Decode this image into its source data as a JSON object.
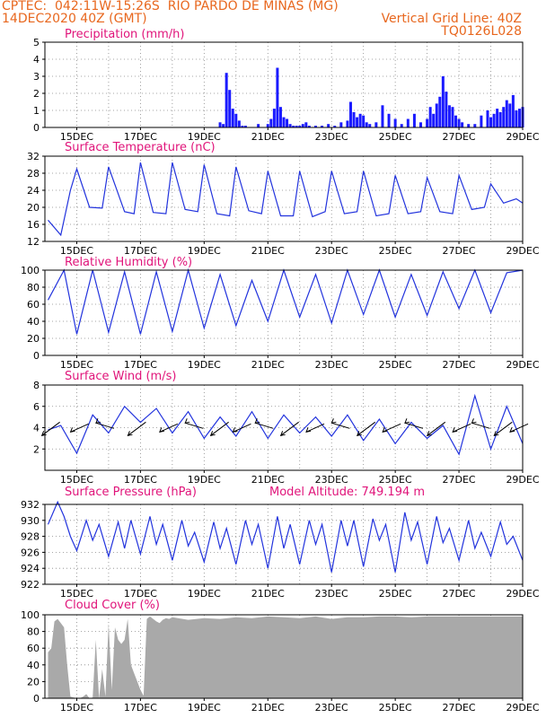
{
  "header": {
    "left_line1": "CPTEC:  042:11W-15:26S  RIO PARDO DE MINAS (MG)",
    "left_line2": "14DEC2020 40Z (GMT)",
    "right_line1": "Vertical Grid Line: 40Z",
    "right_line2": "TQ0126L028"
  },
  "x_ticks": [
    "15DEC",
    "17DEC",
    "19DEC",
    "21DEC",
    "23DEC",
    "25DEC",
    "27DEC",
    "29DEC"
  ],
  "colors": {
    "line": "#2233dd",
    "bar": "#1a1aff",
    "cloud": "#a9a9a9",
    "title": "#e0147a",
    "header": "#e8671e"
  },
  "chart_data": [
    {
      "type": "bar",
      "title": "Precipitation (mm/h)",
      "ylim": [
        0,
        5
      ],
      "yticks": [
        "0",
        "1",
        "2",
        "3",
        "4",
        "5"
      ],
      "x": [
        19.5,
        19.6,
        19.7,
        19.8,
        19.9,
        20.0,
        20.1,
        20.2,
        20.3,
        20.7,
        21.0,
        21.1,
        21.2,
        21.3,
        21.4,
        21.5,
        21.6,
        21.7,
        21.8,
        21.9,
        22.0,
        22.1,
        22.2,
        22.3,
        22.5,
        22.7,
        22.9,
        23.1,
        23.3,
        23.5,
        23.6,
        23.7,
        23.8,
        23.9,
        24.0,
        24.1,
        24.2,
        24.4,
        24.6,
        24.8,
        25.0,
        25.2,
        25.4,
        25.6,
        25.8,
        26.0,
        26.1,
        26.2,
        26.3,
        26.4,
        26.5,
        26.6,
        26.7,
        26.8,
        26.9,
        27.0,
        27.1,
        27.3,
        27.5,
        27.7,
        27.9,
        28.0,
        28.1,
        28.2,
        28.3,
        28.4,
        28.5,
        28.6,
        28.7,
        28.8,
        28.9,
        29.0
      ],
      "values": [
        0.3,
        0.2,
        3.2,
        2.2,
        1.1,
        0.8,
        0.4,
        0.1,
        0.1,
        0.2,
        0.2,
        0.5,
        1.1,
        3.5,
        1.2,
        0.6,
        0.5,
        0.2,
        0.1,
        0.1,
        0.1,
        0.2,
        0.3,
        0.1,
        0.1,
        0.1,
        0.2,
        0.1,
        0.3,
        0.4,
        1.5,
        0.9,
        0.6,
        0.8,
        0.7,
        0.3,
        0.2,
        0.3,
        1.3,
        0.8,
        0.5,
        0.2,
        0.5,
        0.8,
        0.3,
        0.5,
        1.2,
        0.8,
        1.4,
        1.8,
        3.0,
        2.1,
        1.3,
        1.2,
        0.7,
        0.5,
        0.3,
        0.2,
        0.2,
        0.7,
        1.0,
        0.6,
        0.8,
        1.1,
        0.9,
        1.2,
        1.6,
        1.4,
        1.9,
        1.0,
        1.1,
        1.2
      ]
    },
    {
      "type": "line",
      "title": "Surface Temperature (nC)",
      "ylim": [
        12,
        32
      ],
      "yticks": [
        "12",
        "16",
        "20",
        "24",
        "28",
        "32"
      ],
      "x": [
        14.1,
        14.5,
        14.8,
        15.0,
        15.4,
        15.8,
        16.0,
        16.5,
        16.8,
        17.0,
        17.4,
        17.8,
        18.0,
        18.4,
        18.8,
        19.0,
        19.4,
        19.8,
        20.0,
        20.4,
        20.8,
        21.0,
        21.4,
        21.8,
        22.0,
        22.4,
        22.8,
        23.0,
        23.4,
        23.8,
        24.0,
        24.4,
        24.8,
        25.0,
        25.4,
        25.8,
        26.0,
        26.4,
        26.8,
        27.0,
        27.4,
        27.8,
        28.0,
        28.4,
        28.8,
        29.0
      ],
      "values": [
        17.0,
        13.5,
        24.0,
        29.0,
        20.0,
        19.8,
        29.5,
        19.0,
        18.5,
        30.5,
        18.8,
        18.5,
        30.5,
        19.5,
        19.0,
        30.0,
        18.5,
        18.0,
        29.5,
        19.2,
        18.5,
        28.5,
        18.0,
        18.0,
        28.5,
        17.8,
        19.0,
        28.5,
        18.5,
        19.0,
        28.5,
        18.0,
        18.5,
        27.5,
        18.5,
        19.0,
        27.0,
        19.0,
        18.5,
        27.5,
        19.5,
        20.0,
        25.5,
        21.0,
        22.0,
        21.0
      ]
    },
    {
      "type": "line",
      "title": "Relative Humidity (%)",
      "ylim": [
        0,
        100
      ],
      "yticks": [
        "0",
        "20",
        "40",
        "60",
        "80",
        "100"
      ],
      "x": [
        14.1,
        14.6,
        15.0,
        15.5,
        16.0,
        16.5,
        17.0,
        17.5,
        18.0,
        18.5,
        19.0,
        19.5,
        20.0,
        20.5,
        21.0,
        21.5,
        22.0,
        22.5,
        23.0,
        23.5,
        24.0,
        24.5,
        25.0,
        25.5,
        26.0,
        26.5,
        27.0,
        27.5,
        28.0,
        28.5,
        29.0
      ],
      "values": [
        65,
        100,
        25,
        100,
        27,
        98,
        25,
        98,
        28,
        100,
        32,
        95,
        35,
        88,
        40,
        100,
        45,
        95,
        38,
        100,
        48,
        100,
        45,
        95,
        47,
        98,
        55,
        100,
        50,
        97,
        100
      ]
    },
    {
      "type": "line",
      "title": "Surface Wind (m/s)",
      "ylim": [
        0,
        8
      ],
      "yticks": [
        "2",
        "4",
        "6",
        "8"
      ],
      "x": [
        14.1,
        14.5,
        15.0,
        15.5,
        16.0,
        16.5,
        17.0,
        17.5,
        18.0,
        18.5,
        19.0,
        19.5,
        20.0,
        20.5,
        21.0,
        21.5,
        22.0,
        22.5,
        23.0,
        23.5,
        24.0,
        24.5,
        25.0,
        25.5,
        26.0,
        26.5,
        27.0,
        27.5,
        28.0,
        28.5,
        29.0
      ],
      "values": [
        3.8,
        4.2,
        1.6,
        5.2,
        3.5,
        6.0,
        4.5,
        5.8,
        3.5,
        5.5,
        3.0,
        5.0,
        3.2,
        5.5,
        3.0,
        5.2,
        3.5,
        5.0,
        3.2,
        5.2,
        2.8,
        4.8,
        2.5,
        4.5,
        3.0,
        4.2,
        1.5,
        7.0,
        2.0,
        6.0,
        2.5
      ],
      "arrow_x": [
        14.3,
        15.2,
        16.0,
        17.0,
        18.0,
        18.8,
        19.6,
        20.3,
        21.0,
        21.8,
        22.6,
        23.4,
        24.2,
        25.0,
        25.7,
        26.4,
        27.2,
        27.8,
        28.5,
        29.0
      ]
    },
    {
      "type": "line",
      "title": "Surface Pressure (hPa)",
      "annotation": "Model Altitude: 749.194 m",
      "ylim": [
        922,
        932
      ],
      "yticks": [
        "922",
        "924",
        "926",
        "928",
        "930",
        "932"
      ],
      "x": [
        14.1,
        14.4,
        14.6,
        14.8,
        15.0,
        15.3,
        15.5,
        15.7,
        16.0,
        16.3,
        16.5,
        16.7,
        17.0,
        17.3,
        17.5,
        17.7,
        18.0,
        18.3,
        18.5,
        18.7,
        19.0,
        19.3,
        19.5,
        19.7,
        20.0,
        20.3,
        20.5,
        20.7,
        21.0,
        21.3,
        21.5,
        21.7,
        22.0,
        22.3,
        22.5,
        22.7,
        23.0,
        23.3,
        23.5,
        23.7,
        24.0,
        24.3,
        24.5,
        24.7,
        25.0,
        25.3,
        25.5,
        25.7,
        26.0,
        26.3,
        26.5,
        26.7,
        27.0,
        27.3,
        27.5,
        27.7,
        28.0,
        28.3,
        28.5,
        28.7,
        29.0
      ],
      "values": [
        929.5,
        932.3,
        930.5,
        928.0,
        926.2,
        930.0,
        927.5,
        929.5,
        925.5,
        929.8,
        926.5,
        930.0,
        925.8,
        930.5,
        927.0,
        929.5,
        925.0,
        930.0,
        926.8,
        928.5,
        924.8,
        929.8,
        926.5,
        929.0,
        924.5,
        930.0,
        927.0,
        929.5,
        924.0,
        930.5,
        926.5,
        929.5,
        924.5,
        930.0,
        927.0,
        929.5,
        923.5,
        930.0,
        926.8,
        930.0,
        924.2,
        930.2,
        927.5,
        929.5,
        923.5,
        931.0,
        927.5,
        929.8,
        924.5,
        930.5,
        927.2,
        929.0,
        925.0,
        930.0,
        926.5,
        928.5,
        925.5,
        929.8,
        927.0,
        928.0,
        925.0
      ]
    },
    {
      "type": "area",
      "title": "Cloud Cover (%)",
      "ylim": [
        0,
        100
      ],
      "yticks": [
        "0",
        "20",
        "40",
        "60",
        "80",
        "100"
      ],
      "x": [
        14.1,
        14.2,
        14.3,
        14.4,
        14.5,
        14.6,
        14.7,
        14.8,
        14.9,
        15.0,
        15.1,
        15.2,
        15.3,
        15.4,
        15.5,
        15.6,
        15.7,
        15.8,
        15.9,
        16.0,
        16.1,
        16.2,
        16.3,
        16.4,
        16.5,
        16.6,
        16.7,
        16.8,
        16.9,
        17.0,
        17.1,
        17.2,
        17.3,
        17.4,
        17.5,
        17.6,
        17.7,
        17.8,
        17.9,
        18.0,
        18.5,
        19.0,
        19.5,
        20.0,
        20.5,
        21.0,
        21.5,
        22.0,
        22.5,
        23.0,
        23.5,
        24.0,
        24.5,
        25.0,
        25.5,
        26.0,
        26.5,
        27.0,
        27.5,
        28.0,
        28.5,
        29.0
      ],
      "values": [
        55,
        60,
        92,
        95,
        90,
        85,
        40,
        2,
        1,
        0,
        0,
        2,
        5,
        0,
        1,
        70,
        0,
        35,
        2,
        90,
        10,
        85,
        70,
        65,
        70,
        95,
        40,
        30,
        20,
        10,
        3,
        95,
        98,
        95,
        92,
        90,
        94,
        96,
        95,
        97,
        94,
        96,
        95,
        97,
        96,
        98,
        97,
        96,
        98,
        95,
        97,
        97,
        98,
        98,
        97,
        98,
        98,
        98,
        98,
        98,
        98,
        98
      ]
    }
  ]
}
